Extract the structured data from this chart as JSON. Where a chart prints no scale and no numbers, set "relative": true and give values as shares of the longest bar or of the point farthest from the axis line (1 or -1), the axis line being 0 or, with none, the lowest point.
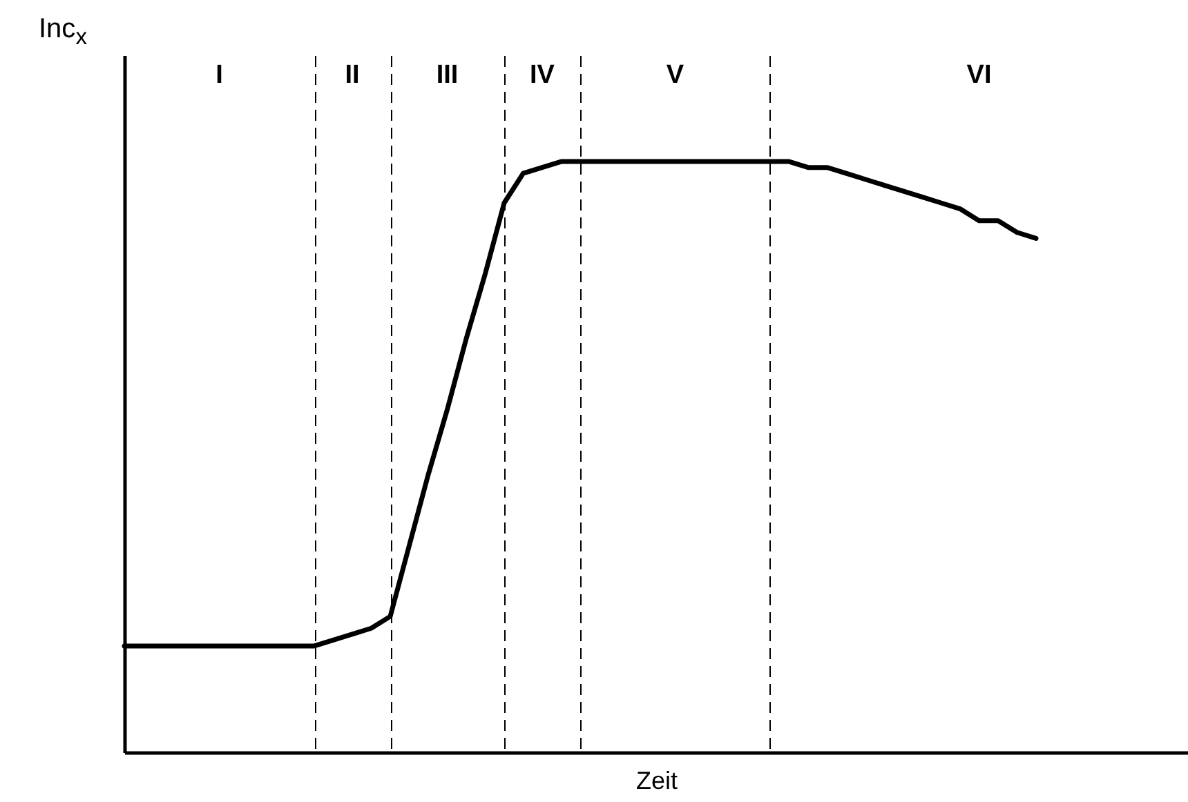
{
  "chart_data": {
    "type": "line",
    "relative": true,
    "xlabel": "Zeit",
    "ylabel": "Inc$_{x}$",
    "categories": [
      null,
      null,
      null,
      null,
      null,
      null,
      null,
      null,
      null,
      null,
      null,
      null,
      null,
      null,
      null,
      null,
      null,
      null,
      null,
      null,
      null,
      null,
      null,
      null,
      null,
      null,
      null,
      null,
      null,
      null,
      null,
      null,
      null,
      null,
      null,
      null,
      null,
      null,
      null,
      null,
      null,
      null,
      null,
      null,
      null,
      null,
      null,
      null,
      null,
      null,
      null,
      null,
      null,
      null,
      null,
      null,
      null
    ],
    "series": [
      {
        "color": "#000000",
        "values": [
          0.18,
          0.18,
          0.18,
          0.18,
          0.18,
          0.18,
          0.18,
          0.18,
          0.18,
          0.18,
          0.18,
          0.19,
          0.2,
          0.21,
          0.23,
          0.35,
          0.47,
          0.58,
          0.7,
          0.81,
          0.93,
          0.98,
          0.99,
          1,
          1,
          1,
          1,
          1,
          1,
          1,
          1,
          1,
          1,
          1,
          1,
          1,
          0.99,
          0.99,
          0.98,
          0.97,
          0.96,
          0.95,
          0.94,
          0.93,
          0.92,
          0.9,
          0.9,
          0.88,
          0.87,
          null,
          null,
          null,
          null,
          null,
          null,
          null,
          null
        ]
      }
    ],
    "grid": "x",
    "annotations": [
      "I",
      "II",
      "III",
      "IV",
      "V",
      "VI"
    ],
    "marker": "none",
    "line_style": "solid"
  }
}
